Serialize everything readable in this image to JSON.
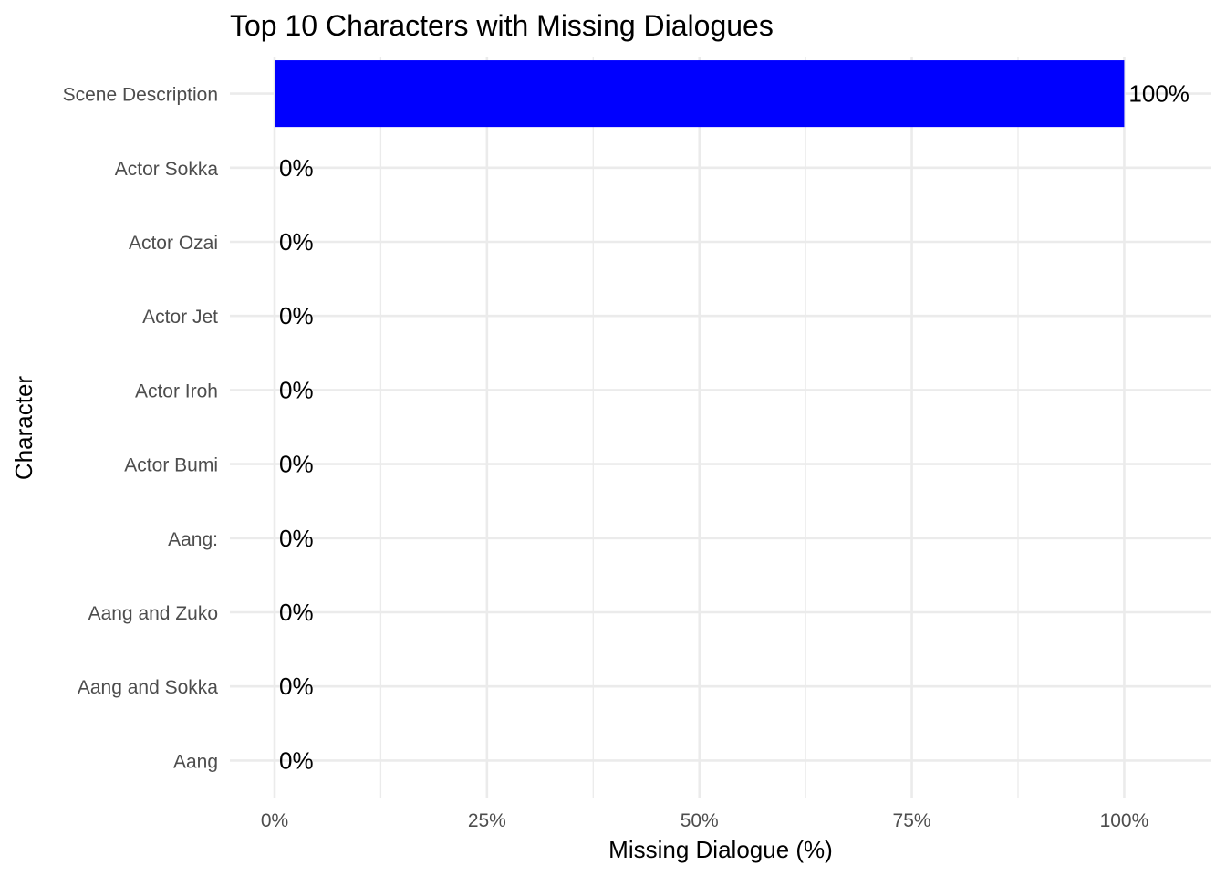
{
  "chart_data": {
    "type": "bar",
    "orientation": "horizontal",
    "title": "Top 10 Characters with Missing Dialogues",
    "xlabel": "Missing Dialogue (%)",
    "ylabel": "Character",
    "categories": [
      "Scene Description",
      "Actor Sokka",
      "Actor Ozai",
      "Actor Jet",
      "Actor Iroh",
      "Actor Bumi",
      "Aang:",
      "Aang and Zuko",
      "Aang and Sokka",
      "Aang"
    ],
    "values": [
      100,
      0,
      0,
      0,
      0,
      0,
      0,
      0,
      0,
      0
    ],
    "data_labels": [
      "100%",
      "0%",
      "0%",
      "0%",
      "0%",
      "0%",
      "0%",
      "0%",
      "0%",
      "0%"
    ],
    "xlim": [
      -5.26,
      110.26
    ],
    "xticks": [
      0,
      25,
      50,
      75,
      100
    ],
    "xtick_labels": [
      "0%",
      "25%",
      "50%",
      "75%",
      "100%"
    ],
    "grid": true,
    "legend": "none",
    "bar_color": "#0000ff"
  }
}
